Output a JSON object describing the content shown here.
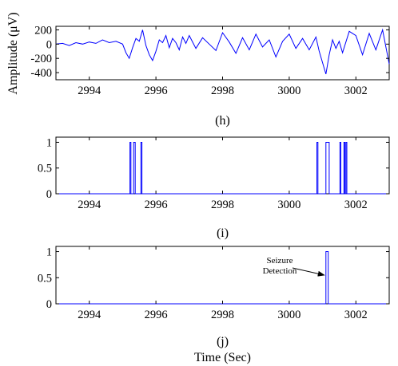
{
  "figure": {
    "ylabel": "Amplitude (μV)",
    "xlabel": "Time (Sec)"
  },
  "chart_data": [
    {
      "type": "line",
      "subplot_label": "(h)",
      "xlim": [
        2993,
        3003
      ],
      "ylim": [
        -500,
        250
      ],
      "xticks": [
        2994,
        2996,
        2998,
        3000,
        3002
      ],
      "yticks": [
        200,
        0,
        -200,
        -400
      ],
      "ylabel": "Amplitude (μV)",
      "grid": false,
      "series_color": "#0000ff",
      "series": [
        {
          "x": [
            2993.0,
            2993.2,
            2993.4,
            2993.6,
            2993.8,
            2994.0,
            2994.2,
            2994.4,
            2994.6,
            2994.8,
            2995.0,
            2995.1,
            2995.2,
            2995.3,
            2995.4,
            2995.5,
            2995.6,
            2995.7,
            2995.8,
            2995.9,
            2996.0,
            2996.1,
            2996.2,
            2996.3,
            2996.4,
            2996.5,
            2996.6,
            2996.7,
            2996.8,
            2996.9,
            2997.0,
            2997.2,
            2997.4,
            2997.6,
            2997.8,
            2998.0,
            2998.2,
            2998.4,
            2998.6,
            2998.8,
            2999.0,
            2999.2,
            2999.4,
            2999.6,
            2999.8,
            3000.0,
            3000.2,
            3000.4,
            3000.6,
            3000.8,
            3000.9,
            3001.0,
            3001.1,
            3001.2,
            3001.3,
            3001.4,
            3001.5,
            3001.6,
            3001.8,
            3002.0,
            3002.2,
            3002.4,
            3002.6,
            3002.8,
            3003.0
          ],
          "y": [
            0,
            10,
            -20,
            20,
            0,
            30,
            10,
            60,
            20,
            40,
            0,
            -120,
            -200,
            -50,
            80,
            40,
            200,
            -20,
            -150,
            -230,
            -100,
            60,
            20,
            120,
            -50,
            80,
            20,
            -80,
            100,
            10,
            120,
            -60,
            90,
            0,
            -90,
            160,
            30,
            -130,
            90,
            -80,
            140,
            -40,
            60,
            -180,
            40,
            140,
            -60,
            80,
            -80,
            100,
            -100,
            -260,
            -420,
            -150,
            60,
            -60,
            40,
            -120,
            180,
            120,
            -150,
            150,
            -80,
            200,
            -280
          ]
        }
      ]
    },
    {
      "type": "line",
      "subplot_label": "(i)",
      "xlim": [
        2993,
        3003
      ],
      "ylim": [
        0,
        1.1
      ],
      "xticks": [
        2994,
        2996,
        2998,
        3000,
        3002
      ],
      "yticks": [
        1,
        0.5,
        0
      ],
      "grid": false,
      "series_color": "#0000ff",
      "pulses": [
        [
          2995.22,
          2995.25
        ],
        [
          2995.33,
          2995.38
        ],
        [
          2995.55,
          2995.58
        ],
        [
          3000.83,
          3000.86
        ],
        [
          3001.1,
          3001.2
        ],
        [
          3001.52,
          3001.55
        ],
        [
          3001.64,
          3001.67
        ],
        [
          3001.7,
          3001.73
        ]
      ]
    },
    {
      "type": "line",
      "subplot_label": "(j)",
      "xlim": [
        2993,
        3003
      ],
      "ylim": [
        0,
        1.1
      ],
      "xticks": [
        2994,
        2996,
        2998,
        3000,
        3002
      ],
      "yticks": [
        1,
        0.5,
        0
      ],
      "grid": false,
      "series_color": "#0000ff",
      "pulses": [
        [
          3001.1,
          3001.17
        ]
      ],
      "annotation": {
        "text_line1": "Seizure",
        "text_line2": "Detection",
        "points_to_x": 3001.1,
        "points_to_y": 0.55
      }
    }
  ]
}
